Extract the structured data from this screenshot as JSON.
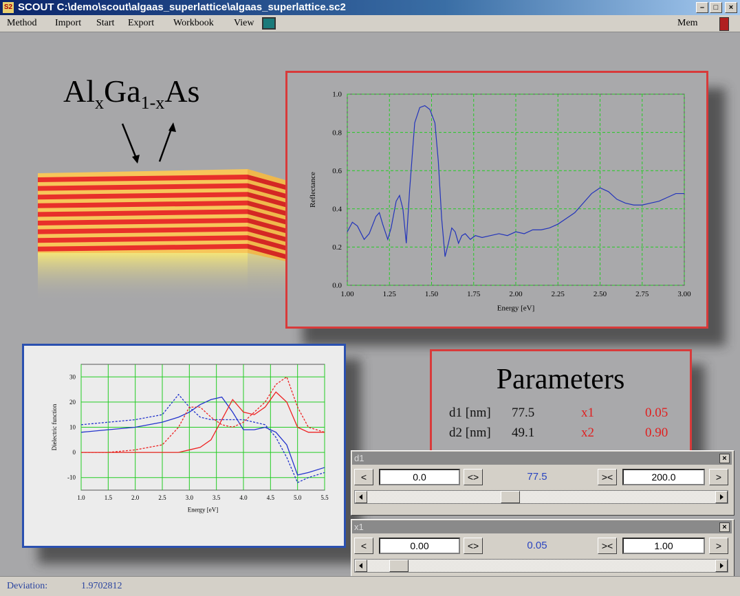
{
  "window": {
    "title": "SCOUT C:\\demo\\scout\\algaas_superlattice\\algaas_superlattice.sc2"
  },
  "menu": {
    "items": [
      "Method",
      "Import",
      "Start",
      "Export",
      "Workbook",
      "View"
    ],
    "right": "Mem"
  },
  "formula": {
    "parts": [
      "Al",
      "x",
      "Ga",
      "1-x",
      "As"
    ]
  },
  "chart_data": [
    {
      "type": "line",
      "xlabel": "Energy [eV]",
      "ylabel": "Reflectance",
      "x": [
        1.0,
        1.03,
        1.06,
        1.1,
        1.13,
        1.17,
        1.19,
        1.21,
        1.24,
        1.26,
        1.29,
        1.31,
        1.33,
        1.35,
        1.37,
        1.4,
        1.43,
        1.46,
        1.49,
        1.52,
        1.54,
        1.56,
        1.58,
        1.6,
        1.62,
        1.64,
        1.66,
        1.68,
        1.7,
        1.73,
        1.76,
        1.8,
        1.85,
        1.9,
        1.95,
        2.0,
        2.05,
        2.1,
        2.15,
        2.2,
        2.25,
        2.3,
        2.35,
        2.4,
        2.45,
        2.5,
        2.55,
        2.6,
        2.65,
        2.7,
        2.75,
        2.8,
        2.85,
        2.9,
        2.95,
        3.0
      ],
      "series": [
        {
          "color": "#2233bb",
          "dash": false,
          "values": [
            0.28,
            0.33,
            0.31,
            0.24,
            0.27,
            0.36,
            0.38,
            0.32,
            0.24,
            0.3,
            0.44,
            0.47,
            0.4,
            0.22,
            0.5,
            0.85,
            0.93,
            0.94,
            0.92,
            0.85,
            0.65,
            0.35,
            0.15,
            0.22,
            0.3,
            0.28,
            0.22,
            0.26,
            0.27,
            0.24,
            0.26,
            0.25,
            0.26,
            0.27,
            0.26,
            0.28,
            0.27,
            0.29,
            0.29,
            0.3,
            0.32,
            0.35,
            0.38,
            0.43,
            0.48,
            0.51,
            0.49,
            0.45,
            0.43,
            0.42,
            0.42,
            0.43,
            0.44,
            0.46,
            0.48,
            0.48
          ]
        }
      ],
      "xlim": [
        1.0,
        3.0
      ],
      "xticks": [
        {
          "value": 1.0,
          "label": "1.00"
        },
        1.25,
        {
          "value": 1.5,
          "label": "1.50"
        },
        1.75,
        {
          "value": 2.0,
          "label": "2.00"
        },
        2.25,
        {
          "value": 2.5,
          "label": "2.50"
        },
        2.75,
        {
          "value": 3.0,
          "label": "3.00"
        }
      ],
      "ylim": [
        0,
        1.0
      ],
      "yticks": [
        {
          "value": 0,
          "label": "0.0"
        },
        0.2,
        0.4,
        0.6,
        0.8,
        {
          "value": 1.0,
          "label": "1.0"
        }
      ],
      "grid": true,
      "grid_color": "#22cc22",
      "grid_dash": true
    },
    {
      "type": "line",
      "xlabel": "Energy [eV]",
      "ylabel": "Dielectric function",
      "x": [
        1.0,
        1.5,
        2.0,
        2.5,
        2.8,
        3.0,
        3.2,
        3.4,
        3.6,
        3.8,
        4.0,
        4.2,
        4.4,
        4.6,
        4.8,
        5.0,
        5.2,
        5.5
      ],
      "series": [
        {
          "color": "#2233cc",
          "dash": true,
          "values": [
            11,
            12,
            13,
            15,
            23,
            18,
            14,
            13,
            13,
            13,
            13,
            12,
            11,
            6,
            -2,
            -12,
            -10,
            -8
          ]
        },
        {
          "color": "#2233cc",
          "dash": false,
          "values": [
            8,
            9,
            10,
            12,
            14,
            16,
            19,
            21,
            22,
            16,
            9,
            9,
            10,
            8,
            3,
            -9,
            -8,
            -6
          ]
        },
        {
          "color": "#ee2222",
          "dash": false,
          "values": [
            0,
            0,
            0,
            0,
            0,
            1,
            2,
            5,
            13,
            21,
            16,
            15,
            18,
            24,
            20,
            10,
            8,
            8
          ]
        },
        {
          "color": "#ee2222",
          "dash": true,
          "values": [
            0,
            0,
            1,
            3,
            10,
            18,
            18,
            14,
            11,
            10,
            12,
            16,
            20,
            27,
            30,
            18,
            10,
            8
          ]
        }
      ],
      "xlim": [
        1.0,
        5.5
      ],
      "xticks": [
        {
          "value": 1.0,
          "label": "1.0"
        },
        1.5,
        {
          "value": 2.0,
          "label": "2.0"
        },
        2.5,
        {
          "value": 3.0,
          "label": "3.0"
        },
        3.5,
        {
          "value": 4.0,
          "label": "4.0"
        },
        4.5,
        {
          "value": 5.0,
          "label": "5.0"
        },
        5.5
      ],
      "ylim": [
        -15,
        35
      ],
      "yticks": [
        -10,
        0,
        10,
        20,
        30
      ],
      "grid": true,
      "grid_color": "#22cc22",
      "grid_dash": false
    }
  ],
  "parameters": {
    "title": "Parameters",
    "rows": [
      [
        "d1 [nm]",
        "77.5",
        "x1",
        "0.05"
      ],
      [
        "d2 [nm]",
        "49.1",
        "x2",
        "0.90"
      ]
    ]
  },
  "slider_buttons": [
    "<",
    "<>",
    "><",
    ">"
  ],
  "sliders": [
    {
      "name": "d1",
      "min": "0.0",
      "value": "77.5",
      "max": "200.0"
    },
    {
      "name": "x1",
      "min": "0.00",
      "value": "0.05",
      "max": "1.00"
    }
  ],
  "status": {
    "label": "Deviation:",
    "value": "1.9702812"
  }
}
